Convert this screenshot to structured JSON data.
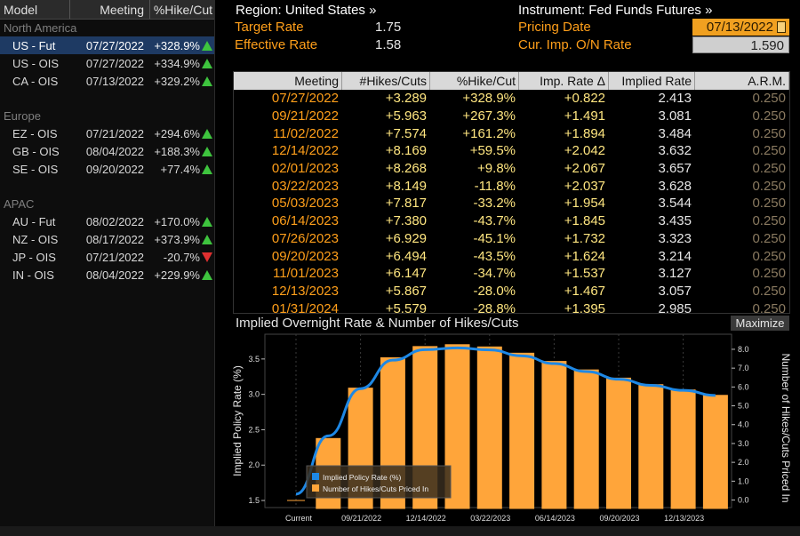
{
  "left_panel": {
    "headers": [
      "Model",
      "Meeting",
      "%Hike/Cut"
    ],
    "regions": [
      {
        "name": "North America",
        "rows": [
          {
            "model": "US - Fut",
            "meeting": "07/27/2022",
            "pct": "+328.9%",
            "dir": "up",
            "selected": true
          },
          {
            "model": "US - OIS",
            "meeting": "07/27/2022",
            "pct": "+334.9%",
            "dir": "up"
          },
          {
            "model": "CA - OIS",
            "meeting": "07/13/2022",
            "pct": "+329.2%",
            "dir": "up"
          }
        ]
      },
      {
        "name": "Europe",
        "rows": [
          {
            "model": "EZ - OIS",
            "meeting": "07/21/2022",
            "pct": "+294.6%",
            "dir": "up"
          },
          {
            "model": "GB - OIS",
            "meeting": "08/04/2022",
            "pct": "+188.3%",
            "dir": "up"
          },
          {
            "model": "SE - OIS",
            "meeting": "09/20/2022",
            "pct": "+77.4%",
            "dir": "up"
          }
        ]
      },
      {
        "name": "APAC",
        "rows": [
          {
            "model": "AU - Fut",
            "meeting": "08/02/2022",
            "pct": "+170.0%",
            "dir": "up"
          },
          {
            "model": "NZ - OIS",
            "meeting": "08/17/2022",
            "pct": "+373.9%",
            "dir": "up"
          },
          {
            "model": "JP - OIS",
            "meeting": "07/21/2022",
            "pct": "-20.7%",
            "dir": "down"
          },
          {
            "model": "IN - OIS",
            "meeting": "08/04/2022",
            "pct": "+229.9%",
            "dir": "up"
          }
        ]
      }
    ]
  },
  "info": {
    "region": "Region: United States »",
    "target_label": "Target Rate",
    "target_value": "1.75",
    "effective_label": "Effective Rate",
    "effective_value": "1.58",
    "instrument": "Instrument: Fed Funds Futures »",
    "pricing_label": "Pricing Date",
    "pricing_value": "07/13/2022",
    "onrate_label": "Cur. Imp. O/N Rate",
    "onrate_value": "1.590"
  },
  "table": {
    "headers": [
      "Meeting",
      "#Hikes/Cuts",
      "%Hike/Cut",
      "Imp. Rate Δ",
      "Implied Rate",
      "A.R.M."
    ],
    "rows": [
      [
        "07/27/2022",
        "+3.289",
        "+328.9%",
        "+0.822",
        "2.413",
        "0.250"
      ],
      [
        "09/21/2022",
        "+5.963",
        "+267.3%",
        "+1.491",
        "3.081",
        "0.250"
      ],
      [
        "11/02/2022",
        "+7.574",
        "+161.2%",
        "+1.894",
        "3.484",
        "0.250"
      ],
      [
        "12/14/2022",
        "+8.169",
        "+59.5%",
        "+2.042",
        "3.632",
        "0.250"
      ],
      [
        "02/01/2023",
        "+8.268",
        "+9.8%",
        "+2.067",
        "3.657",
        "0.250"
      ],
      [
        "03/22/2023",
        "+8.149",
        "-11.8%",
        "+2.037",
        "3.628",
        "0.250"
      ],
      [
        "05/03/2023",
        "+7.817",
        "-33.2%",
        "+1.954",
        "3.544",
        "0.250"
      ],
      [
        "06/14/2023",
        "+7.380",
        "-43.7%",
        "+1.845",
        "3.435",
        "0.250"
      ],
      [
        "07/26/2023",
        "+6.929",
        "-45.1%",
        "+1.732",
        "3.323",
        "0.250"
      ],
      [
        "09/20/2023",
        "+6.494",
        "-43.5%",
        "+1.624",
        "3.214",
        "0.250"
      ],
      [
        "11/01/2023",
        "+6.147",
        "-34.7%",
        "+1.537",
        "3.127",
        "0.250"
      ],
      [
        "12/13/2023",
        "+5.867",
        "-28.0%",
        "+1.467",
        "3.057",
        "0.250"
      ],
      [
        "01/31/2024",
        "+5.579",
        "-28.8%",
        "+1.395",
        "2.985",
        "0.250"
      ]
    ]
  },
  "chart_title": "Implied Overnight Rate & Number of Hikes/Cuts",
  "maximize_label": "Maximize",
  "colors": {
    "bar": "#ffa53a",
    "line": "#1e88e5",
    "accent": "#ff9f1a",
    "up": "#3ec43e",
    "down": "#e03030"
  },
  "chart_data": {
    "type": "bar+line",
    "title": "Implied Overnight Rate & Number of Hikes/Cuts",
    "ylabel_left": "Implied Policy Rate (%)",
    "ylabel_right": "Number of Hikes/Cuts Priced In",
    "left_ticks": [
      "1.5",
      "2.0",
      "2.5",
      "3.0",
      "3.5"
    ],
    "right_ticks": [
      "0.0",
      "1.0",
      "2.0",
      "3.0",
      "4.0",
      "5.0",
      "6.0",
      "7.0",
      "8.0"
    ],
    "x_tick_labels": [
      "Current",
      "09/21/2022",
      "12/14/2022",
      "03/22/2023",
      "06/14/2023",
      "09/20/2023",
      "12/13/2023"
    ],
    "ylim_left": [
      1.4,
      3.85
    ],
    "ylim_right": [
      -0.4,
      8.8
    ],
    "categories": [
      "Current",
      "07/27/2022",
      "09/21/2022",
      "11/02/2022",
      "12/14/2022",
      "02/01/2023",
      "03/22/2023",
      "05/03/2023",
      "06/14/2023",
      "07/26/2023",
      "09/20/2023",
      "11/01/2023",
      "12/13/2023",
      "01/31/2024"
    ],
    "series": [
      {
        "name": "Implied Policy Rate (%)",
        "kind": "line",
        "values": [
          1.59,
          2.413,
          3.081,
          3.484,
          3.632,
          3.657,
          3.628,
          3.544,
          3.435,
          3.323,
          3.214,
          3.127,
          3.057,
          2.985
        ]
      },
      {
        "name": "Number of Hikes/Cuts Priced In",
        "kind": "bar",
        "values": [
          0.0,
          3.289,
          5.963,
          7.574,
          8.169,
          8.268,
          8.149,
          7.817,
          7.38,
          6.929,
          6.494,
          6.147,
          5.867,
          5.579
        ]
      }
    ],
    "legend_position": "bottom-left",
    "grid": "vertical"
  }
}
